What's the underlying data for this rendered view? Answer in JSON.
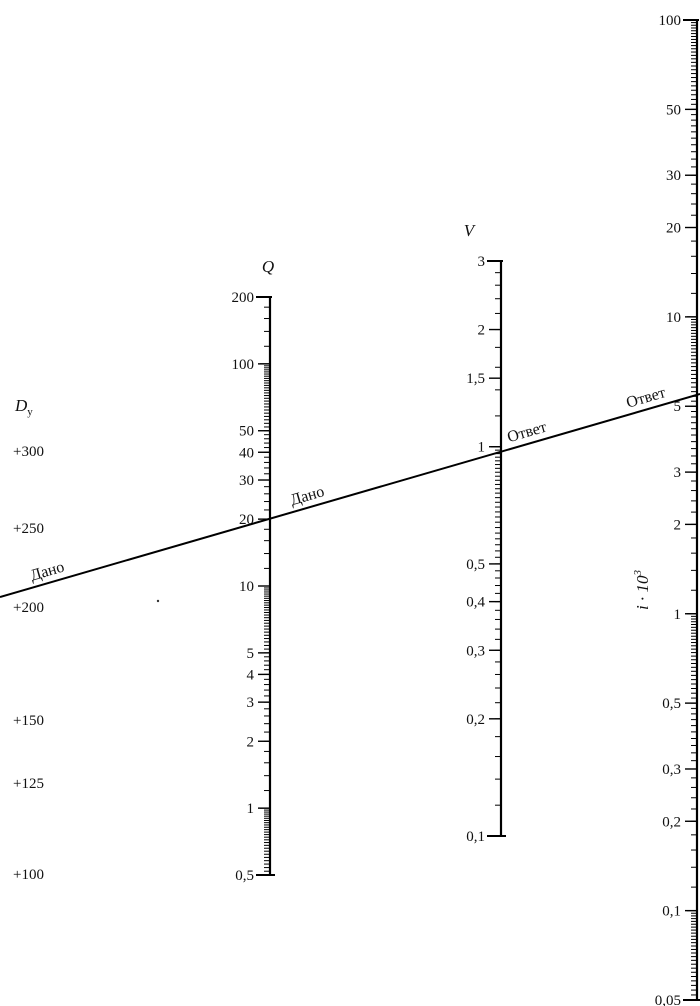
{
  "chart_data": {
    "type": "nomogram",
    "axes": {
      "dy": {
        "title_main": "D",
        "title_sub": "у",
        "values": [
          300,
          250,
          200,
          150,
          125,
          100
        ],
        "labels": [
          "+300",
          "+250",
          "+200",
          "+150",
          "+125",
          "+100"
        ]
      },
      "q": {
        "title": "Q",
        "range": [
          0.5,
          200
        ],
        "scale": "log",
        "tick_labels": [
          {
            "value": 200,
            "text": "200"
          },
          {
            "value": 100,
            "text": "100"
          },
          {
            "value": 50,
            "text": "50"
          },
          {
            "value": 40,
            "text": "40"
          },
          {
            "value": 30,
            "text": "30"
          },
          {
            "value": 20,
            "text": "20"
          },
          {
            "value": 10,
            "text": "10"
          },
          {
            "value": 5,
            "text": "5"
          },
          {
            "value": 4,
            "text": "4"
          },
          {
            "value": 3,
            "text": "3"
          },
          {
            "value": 2,
            "text": "2"
          },
          {
            "value": 1,
            "text": "1"
          },
          {
            "value": 0.5,
            "text": "0,5"
          }
        ]
      },
      "v": {
        "title": "V",
        "range": [
          0.1,
          3
        ],
        "scale": "log",
        "tick_labels": [
          {
            "value": 3,
            "text": "3"
          },
          {
            "value": 2,
            "text": "2"
          },
          {
            "value": 1.5,
            "text": "1,5"
          },
          {
            "value": 1,
            "text": "1"
          },
          {
            "value": 0.5,
            "text": "0,5"
          },
          {
            "value": 0.4,
            "text": "0,4"
          },
          {
            "value": 0.3,
            "text": "0,3"
          },
          {
            "value": 0.2,
            "text": "0,2"
          },
          {
            "value": 0.1,
            "text": "0,1"
          }
        ]
      },
      "i": {
        "title_main": "i · 10",
        "title_sup": "3",
        "range": [
          0.05,
          100
        ],
        "scale": "log",
        "tick_labels": [
          {
            "value": 100,
            "text": "100"
          },
          {
            "value": 50,
            "text": "50"
          },
          {
            "value": 30,
            "text": "30"
          },
          {
            "value": 20,
            "text": "20"
          },
          {
            "value": 10,
            "text": "10"
          },
          {
            "value": 5,
            "text": "5"
          },
          {
            "value": 3,
            "text": "3"
          },
          {
            "value": 2,
            "text": "2"
          },
          {
            "value": 1,
            "text": "1"
          },
          {
            "value": 0.5,
            "text": "0,5"
          },
          {
            "value": 0.3,
            "text": "0,3"
          },
          {
            "value": 0.2,
            "text": "0,2"
          },
          {
            "value": 0.1,
            "text": "0,1"
          },
          {
            "value": 0.05,
            "text": "0,05"
          }
        ]
      }
    },
    "key_line": {
      "given_dy": 200,
      "given_q": 22,
      "answer_v": 1,
      "answer_i": 5.5
    },
    "annotations": [
      {
        "id": "given-dy",
        "text": "Дано"
      },
      {
        "id": "given-q",
        "text": "Дано"
      },
      {
        "id": "answer-v",
        "text": "Ответ"
      },
      {
        "id": "answer-i",
        "text": "Ответ"
      }
    ]
  }
}
